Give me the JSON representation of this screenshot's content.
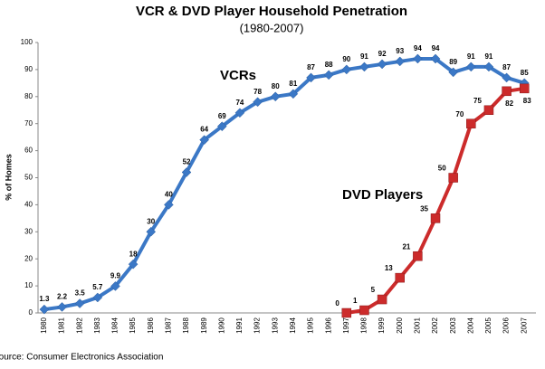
{
  "chart_data": {
    "type": "line",
    "title": "VCR & DVD Player Household Penetration",
    "subtitle": "(1980-2007)",
    "y_label": "% of Homes",
    "source": "Source: Consumer Electronics Association",
    "categories": [
      "1980",
      "1981",
      "1982",
      "1983",
      "1984",
      "1985",
      "1986",
      "1987",
      "1988",
      "1989",
      "1990",
      "1991",
      "1992",
      "1993",
      "1994",
      "1995",
      "1996",
      "1997",
      "1998",
      "1999",
      "2000",
      "2001",
      "2002",
      "2003",
      "2004",
      "2005",
      "2006",
      "2007"
    ],
    "series": [
      {
        "name": "VCRs",
        "color": "#3b78c6",
        "marker": "diamond",
        "values": [
          1.3,
          2.2,
          3.5,
          5.7,
          9.9,
          18,
          30,
          40,
          52,
          64,
          69,
          74,
          78,
          80,
          81,
          87,
          88,
          90,
          91,
          92,
          93,
          94,
          94,
          89,
          91,
          91,
          87,
          85
        ]
      },
      {
        "name": "DVD Players",
        "color": "#cc2b2b",
        "marker": "square",
        "values": [
          null,
          null,
          null,
          null,
          null,
          null,
          null,
          null,
          null,
          null,
          null,
          null,
          null,
          null,
          null,
          null,
          null,
          0,
          1,
          5,
          13,
          21,
          35,
          50,
          70,
          75,
          82,
          83
        ]
      }
    ],
    "ylim": [
      0,
      100
    ],
    "yticks": [
      0,
      10,
      20,
      30,
      40,
      50,
      60,
      70,
      80,
      90,
      100
    ],
    "grid": false
  }
}
